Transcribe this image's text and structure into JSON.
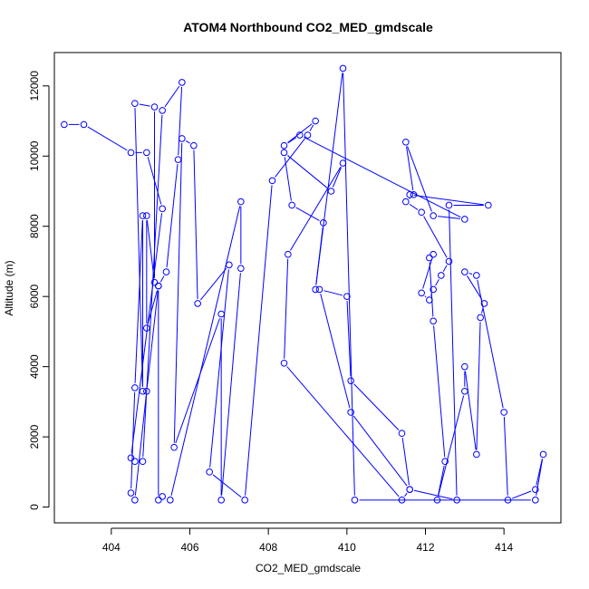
{
  "chart_data": {
    "type": "line",
    "title": "ATOM4 Northbound CO2_MED_gmdscale",
    "xlabel": "CO2_MED_gmdscale",
    "ylabel": "Altitude (m)",
    "xlim": [
      402.55,
      415.45
    ],
    "ylim": [
      -450,
      12950
    ],
    "xticks": [
      404,
      406,
      408,
      410,
      412,
      414
    ],
    "yticks": [
      0,
      2000,
      4000,
      6000,
      8000,
      10000,
      12000
    ],
    "grid": false,
    "series": [
      {
        "color": "#0000ff",
        "marker": "open-circle",
        "points": [
          [
            402.8,
            10900
          ],
          [
            403.3,
            10900
          ],
          [
            404.5,
            10100
          ],
          [
            404.9,
            10100
          ],
          [
            405.3,
            8500
          ],
          [
            404.5,
            1400
          ],
          [
            404.6,
            1300
          ],
          [
            404.8,
            1300
          ],
          [
            405.3,
            11300
          ],
          [
            405.8,
            12100
          ],
          [
            405.7,
            9900
          ],
          [
            405.4,
            6700
          ],
          [
            405.2,
            6300
          ],
          [
            404.9,
            3300
          ],
          [
            404.6,
            200
          ],
          [
            404.5,
            400
          ],
          [
            404.6,
            3400
          ],
          [
            404.8,
            8300
          ],
          [
            404.8,
            3300
          ],
          [
            404.6,
            11500
          ],
          [
            405.1,
            11400
          ],
          [
            405.1,
            6400
          ],
          [
            404.9,
            8300
          ],
          [
            404.9,
            5100
          ],
          [
            405.2,
            6300
          ],
          [
            405.2,
            200
          ],
          [
            405.3,
            300
          ],
          [
            405.5,
            200
          ],
          [
            407.3,
            8700
          ],
          [
            407.3,
            6800
          ],
          [
            406.8,
            200
          ],
          [
            406.8,
            5500
          ],
          [
            405.6,
            1700
          ],
          [
            405.8,
            10500
          ],
          [
            406.1,
            10300
          ],
          [
            406.2,
            5800
          ],
          [
            407.0,
            6900
          ],
          [
            406.5,
            1000
          ],
          [
            407.4,
            200
          ],
          [
            408.1,
            9300
          ],
          [
            409.0,
            10600
          ],
          [
            409.2,
            11000
          ],
          [
            408.4,
            10300
          ],
          [
            408.8,
            10600
          ],
          [
            413.0,
            8200
          ],
          [
            412.2,
            8300
          ],
          [
            411.5,
            10400
          ],
          [
            411.7,
            8900
          ],
          [
            411.5,
            8700
          ],
          [
            411.9,
            8400
          ],
          [
            412.6,
            7000
          ],
          [
            412.4,
            6600
          ],
          [
            412.2,
            6200
          ],
          [
            412.1,
            5900
          ],
          [
            411.9,
            6100
          ],
          [
            412.2,
            7200
          ],
          [
            412.1,
            7100
          ],
          [
            412.2,
            5300
          ],
          [
            412.5,
            1300
          ],
          [
            412.3,
            200
          ],
          [
            413.0,
            3300
          ],
          [
            413.0,
            4000
          ],
          [
            413.3,
            1500
          ],
          [
            413.4,
            5400
          ],
          [
            413.5,
            5800
          ],
          [
            413.0,
            6700
          ],
          [
            413.3,
            6600
          ],
          [
            414.0,
            2700
          ],
          [
            414.1,
            200
          ],
          [
            414.8,
            500
          ],
          [
            415.0,
            1500
          ],
          [
            414.8,
            200
          ],
          [
            410.2,
            200
          ],
          [
            409.9,
            12500
          ],
          [
            409.2,
            6200
          ],
          [
            409.4,
            8100
          ],
          [
            408.6,
            8600
          ],
          [
            408.4,
            10100
          ],
          [
            409.6,
            9000
          ],
          [
            409.9,
            9800
          ],
          [
            408.5,
            7200
          ],
          [
            408.4,
            4100
          ],
          [
            411.4,
            200
          ],
          [
            411.6,
            500
          ],
          [
            410.1,
            2700
          ],
          [
            409.3,
            6200
          ],
          [
            410.0,
            6000
          ],
          [
            410.1,
            3600
          ],
          [
            411.4,
            2100
          ],
          [
            411.6,
            500
          ],
          [
            412.8,
            200
          ],
          [
            412.6,
            8600
          ],
          [
            413.6,
            8600
          ],
          [
            411.6,
            8900
          ]
        ]
      }
    ]
  }
}
